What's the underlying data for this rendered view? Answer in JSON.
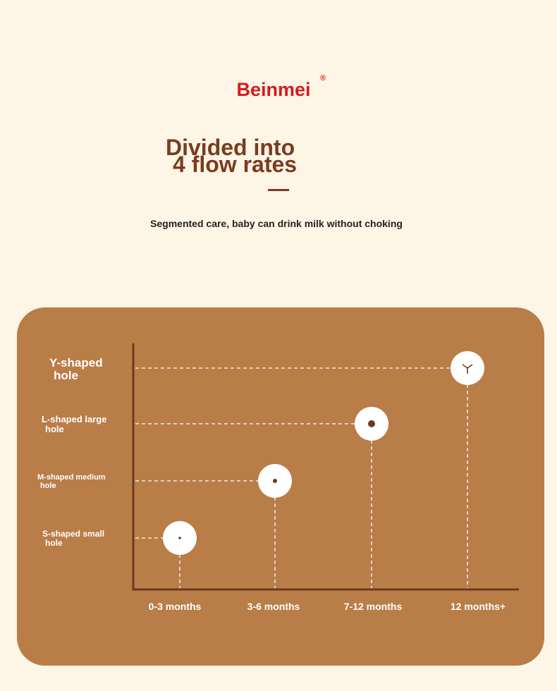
{
  "brand": {
    "name": "Beinmei",
    "mark": "®"
  },
  "header": {
    "title_lines": [
      "Divided into",
      "4 flow rates"
    ],
    "subtitle": "Segmented care, baby can drink milk without choking"
  },
  "diagram": {
    "rows": [
      {
        "label_lines": [
          "S-shaped small",
          "hole"
        ]
      },
      {
        "label_lines": [
          "M-shaped medium",
          "hole"
        ]
      },
      {
        "label_lines": [
          "L-shaped large",
          "hole"
        ]
      },
      {
        "label_lines": [
          "Y-shaped",
          "hole"
        ]
      }
    ],
    "columns": [
      "0-3 months",
      "3-6 months",
      "7-12 months",
      "12 months+"
    ]
  }
}
